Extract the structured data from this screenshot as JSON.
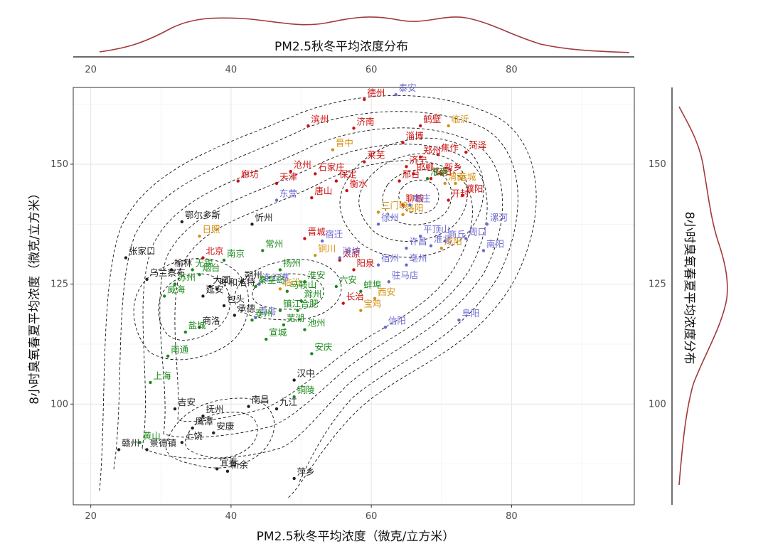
{
  "chart_data": {
    "type": "scatter",
    "title": "",
    "xlabel": "PM2.5秋冬平均浓度（微克/立方米）",
    "ylabel": "8小时臭氧春夏平均浓度（微克/立方米）",
    "top_margin_title": "PM2.5秋冬平均浓度分布",
    "right_margin_title": "8小时臭氧春夏平均浓度分布",
    "xlim": [
      17.5,
      97.5
    ],
    "ylim": [
      79,
      166
    ],
    "xticks": [
      20,
      40,
      60,
      80
    ],
    "yticks": [
      100,
      125,
      150
    ],
    "grid": true,
    "colors": {
      "black": "#222222",
      "red": "#cc1111",
      "orange": "#d4900c",
      "blue": "#6a67d0",
      "green": "#1b8a1b",
      "density_line": "#a23a3a",
      "contour": "#111111"
    },
    "series": [
      {
        "name": "black",
        "color": "#222222",
        "points": [
          {
            "label": "张家口",
            "x": 25.0,
            "y": 130.5
          },
          {
            "label": "乌兰察布",
            "x": 28.0,
            "y": 126.0
          },
          {
            "label": "鄂尔多斯",
            "x": 33.0,
            "y": 138.0
          },
          {
            "label": "忻州",
            "x": 43.0,
            "y": 137.5
          },
          {
            "label": "榆林",
            "x": 31.5,
            "y": 128.0
          },
          {
            "label": "大同",
            "x": 37.0,
            "y": 124.5
          },
          {
            "label": "延安",
            "x": 36.0,
            "y": 122.5
          },
          {
            "label": "呼和浩特",
            "x": 38.0,
            "y": 124.0
          },
          {
            "label": "朔州",
            "x": 41.5,
            "y": 125.5
          },
          {
            "label": "包头",
            "x": 39.0,
            "y": 120.5
          },
          {
            "label": "承德",
            "x": 40.5,
            "y": 118.5
          },
          {
            "label": "商洛",
            "x": 35.5,
            "y": 116.0
          },
          {
            "label": "汉中",
            "x": 49.0,
            "y": 105.0
          },
          {
            "label": "吉安",
            "x": 32.0,
            "y": 99.0
          },
          {
            "label": "抚州",
            "x": 36.0,
            "y": 97.5
          },
          {
            "label": "南昌",
            "x": 42.5,
            "y": 99.5
          },
          {
            "label": "九江",
            "x": 46.5,
            "y": 99.0
          },
          {
            "label": "鹰潭",
            "x": 34.5,
            "y": 95.0
          },
          {
            "label": "安康",
            "x": 37.5,
            "y": 94.0
          },
          {
            "label": "上饶",
            "x": 33.0,
            "y": 92.0
          },
          {
            "label": "赣州",
            "x": 24.0,
            "y": 90.5
          },
          {
            "label": "景德镇",
            "x": 28.0,
            "y": 90.5
          },
          {
            "label": "宜春",
            "x": 38.0,
            "y": 86.5
          },
          {
            "label": "新余",
            "x": 39.5,
            "y": 86.0
          },
          {
            "label": "萍乡",
            "x": 49.0,
            "y": 84.5
          }
        ]
      },
      {
        "name": "red",
        "color": "#cc1111",
        "points": [
          {
            "label": "德州",
            "x": 59.0,
            "y": 163.5
          },
          {
            "label": "滨州",
            "x": 51.0,
            "y": 158.0
          },
          {
            "label": "济南",
            "x": 57.5,
            "y": 157.5
          },
          {
            "label": "鹤壁",
            "x": 67.0,
            "y": 158.0
          },
          {
            "label": "淄博",
            "x": 64.5,
            "y": 154.5
          },
          {
            "label": "焦作",
            "x": 69.5,
            "y": 152.0
          },
          {
            "label": "菏泽",
            "x": 73.5,
            "y": 152.5
          },
          {
            "label": "郑州",
            "x": 67.0,
            "y": 151.5
          },
          {
            "label": "济宁",
            "x": 65.0,
            "y": 149.5
          },
          {
            "label": "沧州",
            "x": 48.5,
            "y": 148.5
          },
          {
            "label": "石家庄",
            "x": 52.0,
            "y": 148.0
          },
          {
            "label": "莱芜",
            "x": 59.0,
            "y": 150.5
          },
          {
            "label": "邯郸",
            "x": 66.0,
            "y": 148.0
          },
          {
            "label": "新乡",
            "x": 70.0,
            "y": 148.0
          },
          {
            "label": "天津",
            "x": 46.5,
            "y": 146.0
          },
          {
            "label": "保定",
            "x": 55.0,
            "y": 146.5
          },
          {
            "label": "廊坊",
            "x": 41.0,
            "y": 146.5
          },
          {
            "label": "邢台",
            "x": 64.0,
            "y": 146.5
          },
          {
            "label": "衡水",
            "x": 56.5,
            "y": 144.5
          },
          {
            "label": "安阳",
            "x": 68.5,
            "y": 147.0
          },
          {
            "label": "唐山",
            "x": 51.5,
            "y": 143.0
          },
          {
            "label": "濮阳",
            "x": 73.0,
            "y": 143.5
          },
          {
            "label": "开封",
            "x": 71.0,
            "y": 142.5
          },
          {
            "label": "聊城",
            "x": 64.5,
            "y": 141.5
          },
          {
            "label": "晋城",
            "x": 50.5,
            "y": 134.5
          },
          {
            "label": "北京",
            "x": 36.0,
            "y": 130.5
          },
          {
            "label": "太原",
            "x": 55.5,
            "y": 130.0
          },
          {
            "label": "阳泉",
            "x": 57.5,
            "y": 128.0
          },
          {
            "label": "长治",
            "x": 56.0,
            "y": 121.0
          }
        ]
      },
      {
        "name": "orange",
        "color": "#d4900c",
        "points": [
          {
            "label": "临沂",
            "x": 71.0,
            "y": 158.0
          },
          {
            "label": "晋中",
            "x": 54.5,
            "y": 153.0
          },
          {
            "label": "运城",
            "x": 72.0,
            "y": 146.0
          },
          {
            "label": "渭南",
            "x": 70.5,
            "y": 146.0
          },
          {
            "label": "洛阳",
            "x": 64.5,
            "y": 139.5
          },
          {
            "label": "三门峡",
            "x": 61.0,
            "y": 140.0
          },
          {
            "label": "铜川",
            "x": 52.0,
            "y": 131.0
          },
          {
            "label": "临汾",
            "x": 47.0,
            "y": 124.0
          },
          {
            "label": "咸阳",
            "x": 70.0,
            "y": 132.5
          },
          {
            "label": "西安",
            "x": 60.5,
            "y": 122.0
          },
          {
            "label": "宝鸡",
            "x": 58.5,
            "y": 119.5
          },
          {
            "label": "日照",
            "x": 35.5,
            "y": 135.0
          }
        ]
      },
      {
        "name": "blue",
        "color": "#6a67d0",
        "points": [
          {
            "label": "泰安",
            "x": 63.5,
            "y": 164.5
          },
          {
            "label": "东营",
            "x": 46.5,
            "y": 142.5
          },
          {
            "label": "宿迁",
            "x": 53.0,
            "y": 134.0
          },
          {
            "label": "枣庄",
            "x": 65.5,
            "y": 141.5
          },
          {
            "label": "潍坊",
            "x": 55.5,
            "y": 130.5
          },
          {
            "label": "徐州",
            "x": 61.0,
            "y": 137.5
          },
          {
            "label": "平顶山",
            "x": 67.0,
            "y": 135.0
          },
          {
            "label": "周口",
            "x": 73.5,
            "y": 134.5
          },
          {
            "label": "漯河",
            "x": 76.5,
            "y": 137.5
          },
          {
            "label": "商丘",
            "x": 70.5,
            "y": 134.0
          },
          {
            "label": "许昌",
            "x": 65.0,
            "y": 132.5
          },
          {
            "label": "淮北",
            "x": 68.5,
            "y": 133.0
          },
          {
            "label": "南阳",
            "x": 76.0,
            "y": 132.0
          },
          {
            "label": "宿州",
            "x": 61.0,
            "y": 129.0
          },
          {
            "label": "亳州",
            "x": 65.0,
            "y": 129.0
          },
          {
            "label": "驻马店",
            "x": 62.5,
            "y": 125.5
          },
          {
            "label": "青岛",
            "x": 43.5,
            "y": 118.0
          },
          {
            "label": "连云港",
            "x": 44.0,
            "y": 125.0
          },
          {
            "label": "阜阳",
            "x": 72.5,
            "y": 117.5
          },
          {
            "label": "信阳",
            "x": 62.0,
            "y": 116.0
          }
        ]
      },
      {
        "name": "green",
        "color": "#1b8a1b",
        "points": [
          {
            "label": "淮南",
            "x": 68.0,
            "y": 147.0
          },
          {
            "label": "常州",
            "x": 44.5,
            "y": 132.0
          },
          {
            "label": "无锡",
            "x": 34.5,
            "y": 128.0
          },
          {
            "label": "南京",
            "x": 39.0,
            "y": 130.0
          },
          {
            "label": "扬州",
            "x": 47.0,
            "y": 128.0
          },
          {
            "label": "烟台",
            "x": 35.5,
            "y": 127.0
          },
          {
            "label": "苏州",
            "x": 32.0,
            "y": 125.0
          },
          {
            "label": "威海",
            "x": 30.5,
            "y": 122.5
          },
          {
            "label": "秦皇岛",
            "x": 43.5,
            "y": 124.5
          },
          {
            "label": "淮安",
            "x": 50.5,
            "y": 125.5
          },
          {
            "label": "六安",
            "x": 55.0,
            "y": 124.5
          },
          {
            "label": "蚌埠",
            "x": 58.5,
            "y": 123.5
          },
          {
            "label": "马鞍山",
            "x": 48.0,
            "y": 123.5
          },
          {
            "label": "滁州",
            "x": 50.0,
            "y": 121.5
          },
          {
            "label": "镇江",
            "x": 47.0,
            "y": 119.5
          },
          {
            "label": "合肥",
            "x": 49.5,
            "y": 119.5
          },
          {
            "label": "盐城",
            "x": 33.5,
            "y": 115.0
          },
          {
            "label": "泰州",
            "x": 43.0,
            "y": 117.5
          },
          {
            "label": "芜湖",
            "x": 47.5,
            "y": 116.5
          },
          {
            "label": "池州",
            "x": 50.5,
            "y": 115.5
          },
          {
            "label": "宣城",
            "x": 45.0,
            "y": 113.5
          },
          {
            "label": "南通",
            "x": 31.0,
            "y": 110.0
          },
          {
            "label": "安庆",
            "x": 51.5,
            "y": 110.5
          },
          {
            "label": "上海",
            "x": 28.5,
            "y": 104.5
          },
          {
            "label": "铜陵",
            "x": 49.0,
            "y": 101.5
          },
          {
            "label": "黄山",
            "x": 27.0,
            "y": 92.0
          }
        ]
      }
    ]
  }
}
